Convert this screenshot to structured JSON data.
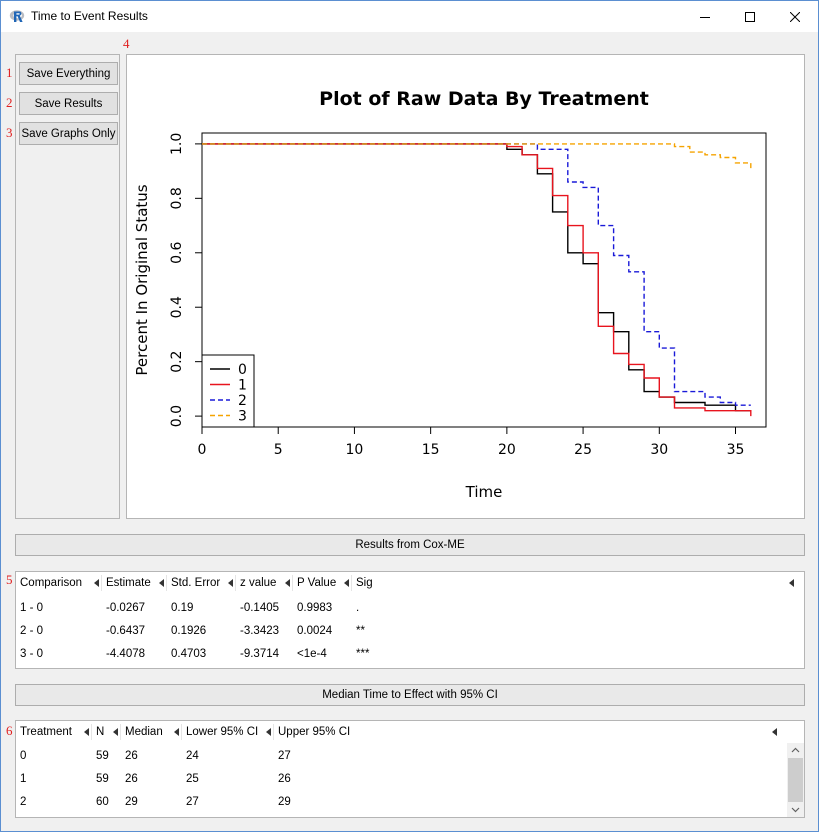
{
  "window": {
    "title": "Time to Event Results",
    "icon": "r-logo-icon"
  },
  "markers": [
    "1",
    "2",
    "3",
    "4",
    "5",
    "6"
  ],
  "buttons": {
    "save_everything": "Save Everything",
    "save_results": "Save Results",
    "save_graphs_only": "Save Graphs Only"
  },
  "chart_data": {
    "type": "line",
    "title": "Plot of Raw Data By Treatment",
    "xlabel": "Time",
    "ylabel": "Percent In Original Status",
    "xlim": [
      0,
      37
    ],
    "ylim": [
      -0.04,
      1.04
    ],
    "xticks": [
      "0",
      "5",
      "10",
      "15",
      "20",
      "25",
      "30",
      "35"
    ],
    "yticks": [
      "0.0",
      "0.2",
      "0.4",
      "0.6",
      "0.8",
      "1.0"
    ],
    "legend_position": "bottom-left",
    "series": [
      {
        "name": "0",
        "color": "#000000",
        "dash": "solid",
        "points": [
          [
            0,
            1.0
          ],
          [
            20,
            1.0
          ],
          [
            20,
            0.98
          ],
          [
            21,
            0.98
          ],
          [
            21,
            0.96
          ],
          [
            22,
            0.96
          ],
          [
            22,
            0.89
          ],
          [
            23,
            0.89
          ],
          [
            23,
            0.75
          ],
          [
            24,
            0.75
          ],
          [
            24,
            0.6
          ],
          [
            25,
            0.6
          ],
          [
            25,
            0.56
          ],
          [
            26,
            0.56
          ],
          [
            26,
            0.38
          ],
          [
            27,
            0.38
          ],
          [
            27,
            0.31
          ],
          [
            28,
            0.31
          ],
          [
            28,
            0.17
          ],
          [
            29,
            0.17
          ],
          [
            29,
            0.09
          ],
          [
            30,
            0.09
          ],
          [
            30,
            0.07
          ],
          [
            31,
            0.07
          ],
          [
            31,
            0.05
          ],
          [
            33,
            0.05
          ],
          [
            33,
            0.04
          ],
          [
            35,
            0.04
          ],
          [
            35,
            0.02
          ],
          [
            36,
            0.02
          ]
        ]
      },
      {
        "name": "1",
        "color": "#e8141e",
        "dash": "solid",
        "points": [
          [
            0,
            1.0
          ],
          [
            20,
            1.0
          ],
          [
            20,
            0.99
          ],
          [
            21,
            0.99
          ],
          [
            21,
            0.96
          ],
          [
            22,
            0.96
          ],
          [
            22,
            0.91
          ],
          [
            23,
            0.91
          ],
          [
            23,
            0.81
          ],
          [
            24,
            0.81
          ],
          [
            24,
            0.7
          ],
          [
            25,
            0.7
          ],
          [
            25,
            0.6
          ],
          [
            26,
            0.6
          ],
          [
            26,
            0.33
          ],
          [
            27,
            0.33
          ],
          [
            27,
            0.23
          ],
          [
            28,
            0.23
          ],
          [
            28,
            0.19
          ],
          [
            29,
            0.19
          ],
          [
            29,
            0.14
          ],
          [
            30,
            0.14
          ],
          [
            30,
            0.07
          ],
          [
            31,
            0.07
          ],
          [
            31,
            0.03
          ],
          [
            33,
            0.03
          ],
          [
            33,
            0.02
          ],
          [
            36,
            0.02
          ],
          [
            36,
            0.0
          ]
        ]
      },
      {
        "name": "2",
        "color": "#1a1ad8",
        "dash": "dashed",
        "points": [
          [
            0,
            1.0
          ],
          [
            22,
            1.0
          ],
          [
            22,
            0.98
          ],
          [
            24,
            0.98
          ],
          [
            24,
            0.97
          ],
          [
            24,
            0.97
          ],
          [
            24,
            0.86
          ],
          [
            25,
            0.86
          ],
          [
            25,
            0.84
          ],
          [
            26,
            0.84
          ],
          [
            26,
            0.7
          ],
          [
            27,
            0.7
          ],
          [
            27,
            0.59
          ],
          [
            28,
            0.59
          ],
          [
            28,
            0.53
          ],
          [
            29,
            0.53
          ],
          [
            29,
            0.31
          ],
          [
            30,
            0.31
          ],
          [
            30,
            0.25
          ],
          [
            31,
            0.25
          ],
          [
            31,
            0.09
          ],
          [
            33,
            0.09
          ],
          [
            33,
            0.07
          ],
          [
            34,
            0.07
          ],
          [
            34,
            0.05
          ],
          [
            35,
            0.05
          ],
          [
            35,
            0.04
          ],
          [
            36,
            0.04
          ]
        ]
      },
      {
        "name": "3",
        "color": "#f5a300",
        "dash": "dashed",
        "points": [
          [
            0,
            1.0
          ],
          [
            31,
            1.0
          ],
          [
            31,
            0.99
          ],
          [
            32,
            0.99
          ],
          [
            32,
            0.97
          ],
          [
            33,
            0.97
          ],
          [
            33,
            0.96
          ],
          [
            34,
            0.96
          ],
          [
            34,
            0.95
          ],
          [
            35,
            0.95
          ],
          [
            35,
            0.93
          ],
          [
            36,
            0.93
          ],
          [
            36,
            0.9
          ]
        ]
      }
    ]
  },
  "cox": {
    "header": "Results from Cox-ME",
    "columns": [
      "Comparison",
      "Estimate",
      "Std. Error",
      "z value",
      "P Value",
      "Sig"
    ],
    "rows": [
      [
        "1 - 0",
        "-0.0267",
        "0.19",
        "-0.1405",
        "0.9983",
        "."
      ],
      [
        "2 - 0",
        "-0.6437",
        "0.1926",
        "-3.3423",
        "0.0024",
        "**"
      ],
      [
        "3 - 0",
        "-4.4078",
        "0.4703",
        "-9.3714",
        "<1e-4",
        "***"
      ]
    ]
  },
  "median": {
    "header": "Median Time to Effect with 95% CI",
    "columns": [
      "Treatment",
      "N",
      "Median",
      "Lower 95% CI",
      "Upper 95% CI"
    ],
    "rows": [
      [
        "0",
        "59",
        "26",
        "24",
        "27"
      ],
      [
        "1",
        "59",
        "26",
        "25",
        "26"
      ],
      [
        "2",
        "60",
        "29",
        "27",
        "29"
      ]
    ]
  }
}
